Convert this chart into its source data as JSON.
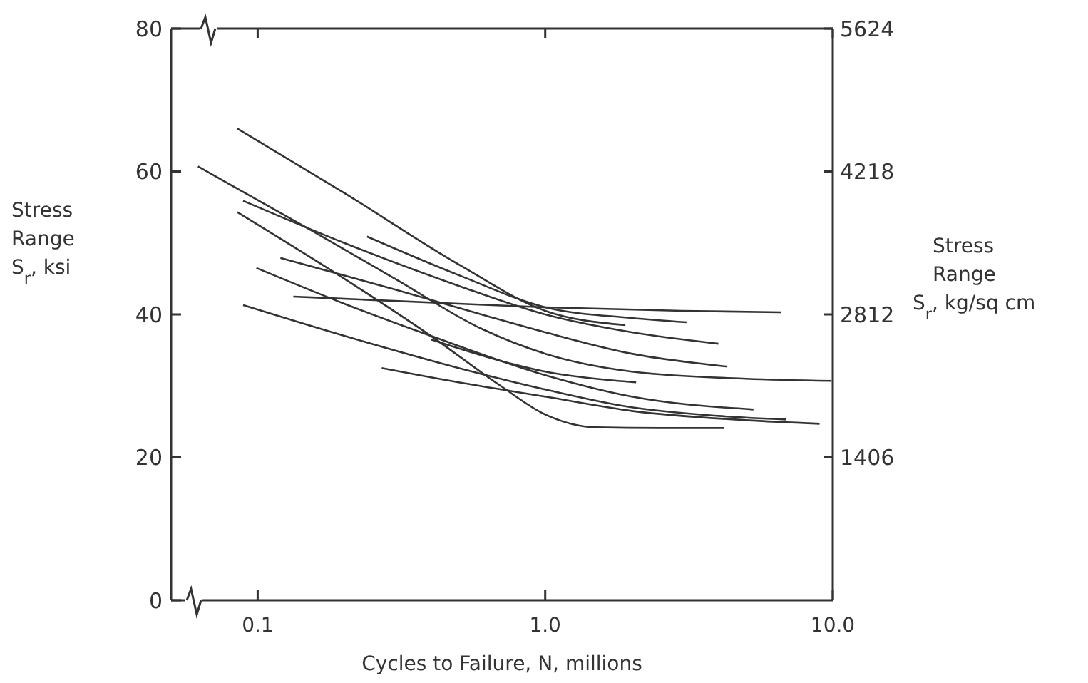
{
  "chart_data": {
    "type": "line",
    "xlabel": "Cycles to Failure, N, millions",
    "ylabel": "Stress Range S$_{r}$, ksi",
    "y2label": "Stress Range S$_{r}$, kg/sq cm",
    "log": "x",
    "xlim": [
      0.05,
      10
    ],
    "xticks": [
      {
        "value": 0.1,
        "label": "0.1"
      },
      {
        "value": 1,
        "label": "1.0"
      },
      {
        "value": 10,
        "label": "10.0"
      }
    ],
    "ylim": [
      0,
      80
    ],
    "yticks": [
      0,
      20,
      40,
      60,
      80
    ],
    "y2lim": [
      0,
      5624
    ],
    "y2ticks": [
      1406,
      2812,
      4218,
      5624
    ],
    "marker": "none",
    "line_style": "solid",
    "series": [
      {
        "color": "#333333",
        "x": [
          0.085,
          0.2,
          0.5,
          1.0,
          1.9
        ],
        "values": [
          66,
          57,
          47,
          40.5,
          38.5
        ]
      },
      {
        "color": "#333333",
        "x": [
          0.24,
          0.5,
          1.0,
          2.0,
          3.1
        ],
        "values": [
          50.9,
          45.5,
          41,
          39.5,
          38.9
        ]
      },
      {
        "color": "#333333",
        "x": [
          0.089,
          0.2,
          0.5,
          1.0,
          2.0,
          4.0
        ],
        "values": [
          55.9,
          50,
          44,
          40,
          37.5,
          35.9
        ]
      },
      {
        "color": "#333333",
        "x": [
          0.12,
          0.3,
          0.6,
          1.0,
          2.0,
          4.3
        ],
        "values": [
          47.9,
          43.5,
          40,
          37.5,
          34.5,
          32.7
        ]
      },
      {
        "color": "#333333",
        "x": [
          0.133,
          0.5,
          1.0,
          3.0,
          6.6
        ],
        "values": [
          42.5,
          41.5,
          41,
          40.5,
          40.3
        ]
      },
      {
        "color": "#333333",
        "x": [
          0.062,
          0.15,
          0.3,
          0.6,
          1.0,
          2.0,
          5.0,
          9.9
        ],
        "values": [
          60.7,
          52,
          45,
          38,
          34.5,
          32,
          31,
          30.7
        ]
      },
      {
        "color": "#333333",
        "x": [
          0.085,
          0.2,
          0.4,
          0.7,
          1.0,
          1.5,
          2.5,
          4.2
        ],
        "values": [
          54.3,
          45,
          37,
          30,
          26,
          24.2,
          24.1,
          24.1
        ]
      },
      {
        "color": "#333333",
        "x": [
          0.099,
          0.2,
          0.4,
          1.0,
          2.0,
          5.3
        ],
        "values": [
          46.5,
          41.5,
          37,
          31.5,
          28.5,
          26.7
        ]
      },
      {
        "color": "#333333",
        "x": [
          0.089,
          0.2,
          0.5,
          1.0,
          2.0,
          4.0,
          6.9
        ],
        "values": [
          41.3,
          37,
          32.5,
          29.5,
          27,
          25.8,
          25.3
        ]
      },
      {
        "color": "#333333",
        "x": [
          0.27,
          0.5,
          1.0,
          2.0,
          5.0,
          9.0
        ],
        "values": [
          32.5,
          30.5,
          28.5,
          26.5,
          25.2,
          24.7
        ]
      },
      {
        "color": "#333333",
        "x": [
          0.4,
          0.7,
          1.0,
          1.5,
          2.07
        ],
        "values": [
          36.5,
          33.5,
          32,
          31,
          30.5
        ]
      }
    ]
  }
}
